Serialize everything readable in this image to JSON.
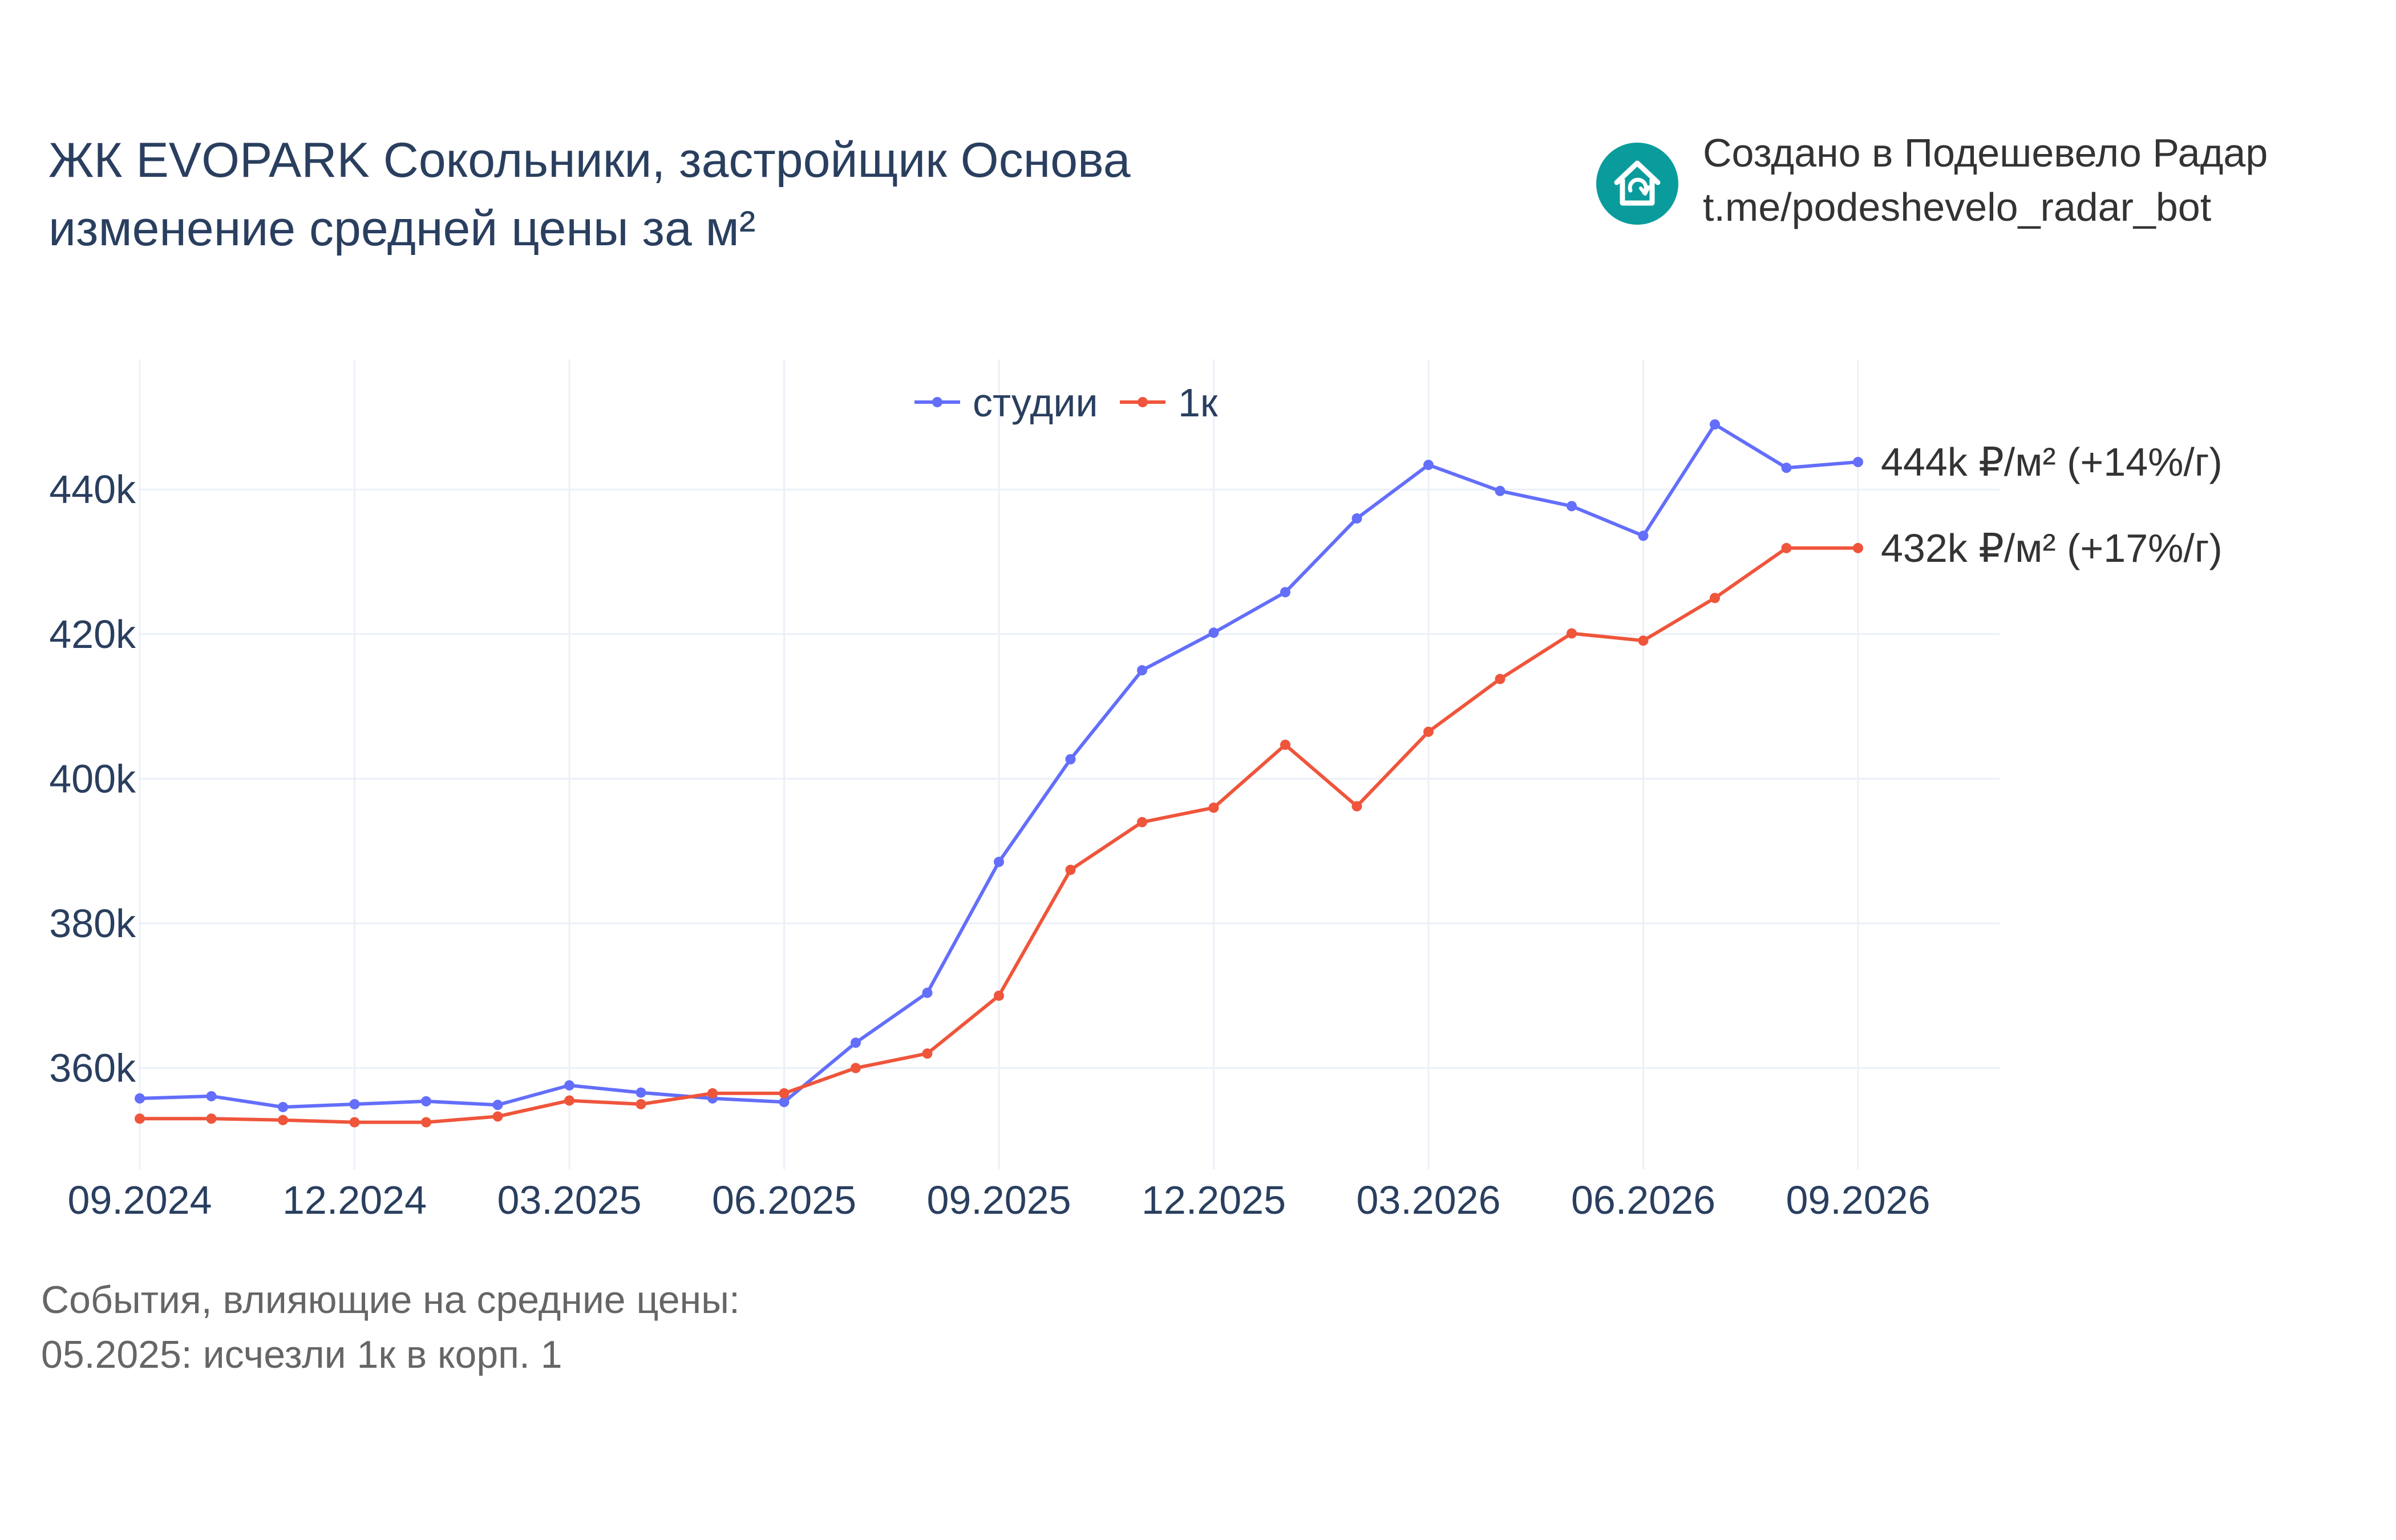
{
  "header": {
    "title_line1": "ЖК EVOPARK Сокольники, застройщик Основа",
    "title_line2": "изменение средней цены за м²"
  },
  "credit": {
    "line1": "Создано в Подешевело Радар",
    "line2": "t.me/podeshevelo_radar_bot",
    "icon": "house-refresh-icon",
    "icon_color": "#0a9c9c"
  },
  "events": {
    "heading": "События, влияющие на средние цены:",
    "items": [
      "05.2025: исчезли 1к в корп. 1"
    ]
  },
  "chart_data": {
    "type": "line",
    "x": [
      "2024-09",
      "2024-10",
      "2024-11",
      "2024-12",
      "2025-01",
      "2025-02",
      "2025-03",
      "2025-04",
      "2025-05",
      "2025-06",
      "2025-07",
      "2025-08",
      "2025-09",
      "2025-10",
      "2025-11",
      "2025-12",
      "2026-01",
      "2026-02",
      "2026-03",
      "2026-04",
      "2026-05",
      "2026-06",
      "2026-07",
      "2026-08",
      "2026-09"
    ],
    "x_ticks": [
      {
        "x": "2024-09",
        "label": "09.2024"
      },
      {
        "x": "2024-12",
        "label": "12.2024"
      },
      {
        "x": "2025-03",
        "label": "03.2025"
      },
      {
        "x": "2025-06",
        "label": "06.2025"
      },
      {
        "x": "2025-09",
        "label": "09.2025"
      },
      {
        "x": "2025-12",
        "label": "12.2025"
      },
      {
        "x": "2026-03",
        "label": "03.2026"
      },
      {
        "x": "2026-06",
        "label": "06.2026"
      },
      {
        "x": "2026-09",
        "label": "09.2026"
      }
    ],
    "y_ticks": [
      {
        "value": 360000,
        "label": "360k"
      },
      {
        "value": 380000,
        "label": "380k"
      },
      {
        "value": 400000,
        "label": "400k"
      },
      {
        "value": 420000,
        "label": "420k"
      },
      {
        "value": 440000,
        "label": "440k"
      }
    ],
    "ylim": [
      346000,
      458000
    ],
    "grid": true,
    "legend_position": "top-center",
    "series": [
      {
        "name": "студии",
        "color": "#636efa",
        "values": [
          355800,
          356100,
          354600,
          355000,
          355400,
          354900,
          357600,
          356600,
          355800,
          355300,
          363500,
          370400,
          388500,
          402700,
          415000,
          420200,
          425800,
          436000,
          443400,
          439800,
          437700,
          433600,
          449000,
          443000,
          443800
        ],
        "end_label": "444k ₽/м² (+14%/г)"
      },
      {
        "name": "1к",
        "color": "#ef553b",
        "values": [
          353000,
          353000,
          352800,
          352500,
          352500,
          353300,
          355500,
          355000,
          356500,
          356500,
          360000,
          362000,
          370000,
          387400,
          394000,
          396000,
          404700,
          396200,
          406500,
          413800,
          420100,
          419100,
          425000,
          431900,
          431900
        ],
        "end_label": "432k ₽/м² (+17%/г)"
      }
    ]
  }
}
